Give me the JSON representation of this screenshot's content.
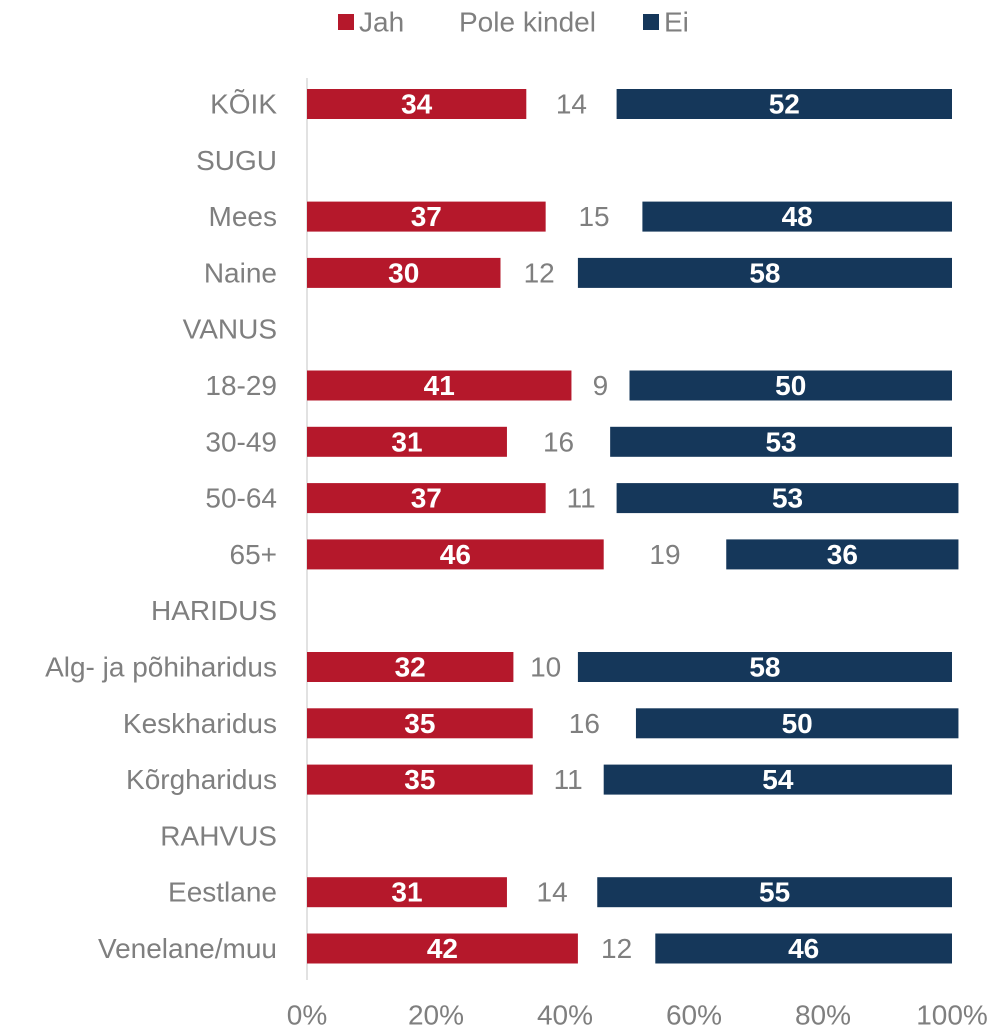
{
  "chart_data": {
    "type": "bar",
    "orientation": "horizontal",
    "stacked": true,
    "xlim": [
      0,
      100
    ],
    "x_ticks": [
      "0%",
      "20%",
      "40%",
      "60%",
      "80%",
      "100%"
    ],
    "legend_position": "top",
    "categories": [
      "KÕIK",
      "SUGU",
      "Mees",
      "Naine",
      "VANUS",
      "18-29",
      "30-49",
      "50-64",
      "65+",
      "HARIDUS",
      "Alg- ja põhiharidus",
      "Keskharidus",
      "Kõrgharidus",
      "RAHVUS",
      "Eestlane",
      "Venelane/muu"
    ],
    "series": [
      {
        "name": "Jah",
        "color": "#b5182b",
        "visible": true,
        "values": [
          34,
          null,
          37,
          30,
          null,
          41,
          31,
          37,
          46,
          null,
          32,
          35,
          35,
          null,
          31,
          42
        ]
      },
      {
        "name": "Pole kindel",
        "color": "#ffffff",
        "visible": false,
        "values": [
          14,
          null,
          15,
          12,
          null,
          9,
          16,
          11,
          19,
          null,
          10,
          16,
          11,
          null,
          14,
          12
        ]
      },
      {
        "name": "Ei",
        "color": "#15375a",
        "visible": true,
        "values": [
          52,
          null,
          48,
          58,
          null,
          50,
          53,
          53,
          36,
          null,
          58,
          50,
          54,
          null,
          55,
          46
        ]
      }
    ]
  }
}
